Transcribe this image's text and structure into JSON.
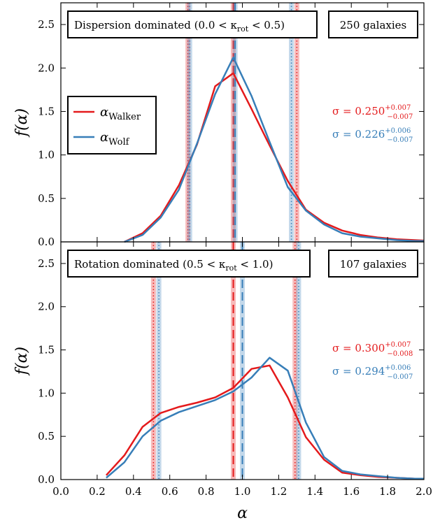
{
  "chart_data": {
    "type": "line",
    "xlabel": "α",
    "xlim": [
      0.0,
      2.0
    ],
    "xticks": [
      "0.0",
      "0.2",
      "0.4",
      "0.6",
      "0.8",
      "1.0",
      "1.2",
      "1.4",
      "1.6",
      "1.8",
      "2.0"
    ],
    "colors": {
      "walker": "#e41a1c",
      "wolf": "#377eb8"
    },
    "legend": {
      "placement": "upper-left",
      "walker_base": "α",
      "walker_sub": "Walker",
      "wolf_base": "α",
      "wolf_sub": "Wolf"
    },
    "panels": [
      {
        "ylabel": "f(α)",
        "ylim": [
          0.0,
          2.75
        ],
        "yticks": [
          "0.0",
          "0.5",
          "1.0",
          "1.5",
          "2.0",
          "2.5"
        ],
        "title_box": "Dispersion dominated (0.0 < κ",
        "title_box_sub": "rot",
        "title_box_end": " < 0.5)",
        "count_box": "250 galaxies",
        "series": [
          {
            "key": "walker",
            "x": [
              0.35,
              0.45,
              0.55,
              0.65,
              0.75,
              0.85,
              0.95,
              1.05,
              1.15,
              1.25,
              1.35,
              1.45,
              1.55,
              1.65,
              1.75,
              1.85,
              1.95,
              2.0
            ],
            "y": [
              0.0,
              0.1,
              0.3,
              0.65,
              1.12,
              1.79,
              1.94,
              1.53,
              1.11,
              0.7,
              0.37,
              0.22,
              0.13,
              0.08,
              0.05,
              0.03,
              0.02,
              0.015
            ]
          },
          {
            "key": "wolf",
            "x": [
              0.35,
              0.45,
              0.55,
              0.65,
              0.75,
              0.85,
              0.95,
              1.05,
              1.15,
              1.25,
              1.35,
              1.45,
              1.55,
              1.65,
              1.75,
              1.85,
              1.95,
              2.0
            ],
            "y": [
              0.0,
              0.08,
              0.28,
              0.6,
              1.13,
              1.7,
              2.12,
              1.68,
              1.15,
              0.63,
              0.36,
              0.2,
              0.1,
              0.06,
              0.04,
              0.02,
              0.01,
              0.01
            ]
          }
        ],
        "vlines": [
          {
            "key": "walker",
            "median": 0.95,
            "low": 0.7,
            "high": 1.3
          },
          {
            "key": "wolf",
            "median": 0.96,
            "low": 0.71,
            "high": 1.27
          }
        ],
        "sigma": [
          {
            "key": "walker",
            "prefix": "σ = 0.250",
            "sup": "+0.007",
            "sub": "−0.007"
          },
          {
            "key": "wolf",
            "prefix": "σ = 0.226",
            "sup": "+0.006",
            "sub": "−0.007"
          }
        ]
      },
      {
        "ylabel": "f(α)",
        "ylim": [
          0.0,
          2.75
        ],
        "yticks": [
          "0.0",
          "0.5",
          "1.0",
          "1.5",
          "2.0",
          "2.5"
        ],
        "title_box": "Rotation dominated (0.5 < κ",
        "title_box_sub": "rot",
        "title_box_end": " < 1.0)",
        "count_box": "107 galaxies",
        "series": [
          {
            "key": "walker",
            "x": [
              0.25,
              0.35,
              0.45,
              0.55,
              0.65,
              0.75,
              0.85,
              0.95,
              1.05,
              1.15,
              1.25,
              1.35,
              1.45,
              1.55,
              1.65,
              1.75,
              1.85,
              1.95,
              2.0
            ],
            "y": [
              0.05,
              0.28,
              0.61,
              0.77,
              0.84,
              0.89,
              0.95,
              1.06,
              1.28,
              1.32,
              0.95,
              0.49,
              0.23,
              0.08,
              0.05,
              0.03,
              0.02,
              0.01,
              0.01
            ]
          },
          {
            "key": "wolf",
            "x": [
              0.25,
              0.35,
              0.45,
              0.55,
              0.65,
              0.75,
              0.85,
              0.95,
              1.05,
              1.15,
              1.25,
              1.35,
              1.45,
              1.55,
              1.65,
              1.75,
              1.85,
              1.95,
              2.0
            ],
            "y": [
              0.02,
              0.2,
              0.5,
              0.68,
              0.78,
              0.85,
              0.92,
              1.02,
              1.18,
              1.41,
              1.26,
              0.66,
              0.26,
              0.1,
              0.06,
              0.04,
              0.02,
              0.01,
              0.01
            ]
          }
        ],
        "vlines": [
          {
            "key": "walker",
            "median": 0.95,
            "low": 0.51,
            "high": 1.29
          },
          {
            "key": "wolf",
            "median": 1.0,
            "low": 0.54,
            "high": 1.31
          }
        ],
        "sigma": [
          {
            "key": "walker",
            "prefix": "σ = 0.300",
            "sup": "+0.007",
            "sub": "−0.008"
          },
          {
            "key": "wolf",
            "prefix": "σ = 0.294",
            "sup": "+0.006",
            "sub": "−0.007"
          }
        ]
      }
    ]
  }
}
